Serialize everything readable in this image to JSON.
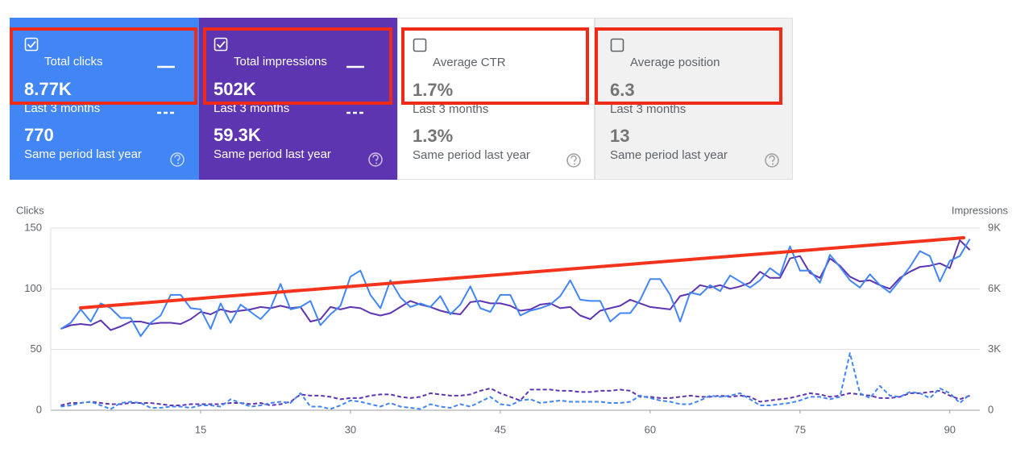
{
  "cards": [
    {
      "label": "Total clicks",
      "value": "8.77K",
      "period": "Last 3 months",
      "previous_value": "770",
      "previous_period": "Same period last year"
    },
    {
      "label": "Total impressions",
      "value": "502K",
      "period": "Last 3 months",
      "previous_value": "59.3K",
      "previous_period": "Same period last year"
    },
    {
      "label": "Average CTR",
      "value": "1.7%",
      "period": "Last 3 months",
      "previous_value": "1.3%",
      "previous_period": "Same period last year"
    },
    {
      "label": "Average position",
      "value": "6.3",
      "period": "Last 3 months",
      "previous_value": "13",
      "previous_period": "Same period last year"
    }
  ],
  "chart_data": {
    "type": "line",
    "y_label": "Clicks",
    "y2_label": "Impressions",
    "x": [
      1,
      2,
      3,
      4,
      5,
      6,
      7,
      8,
      9,
      10,
      11,
      12,
      13,
      14,
      15,
      16,
      17,
      18,
      19,
      20,
      21,
      22,
      23,
      24,
      25,
      26,
      27,
      28,
      29,
      30,
      31,
      32,
      33,
      34,
      35,
      36,
      37,
      38,
      39,
      40,
      41,
      42,
      43,
      44,
      45,
      46,
      47,
      48,
      49,
      50,
      51,
      52,
      53,
      54,
      55,
      56,
      57,
      58,
      59,
      60,
      61,
      62,
      63,
      64,
      65,
      66,
      67,
      68,
      69,
      70,
      71,
      72,
      73,
      74,
      75,
      76,
      77,
      78,
      79,
      80,
      81,
      82,
      83,
      84,
      85,
      86,
      87,
      88,
      89,
      90,
      91,
      92
    ],
    "xlim": [
      0,
      93
    ],
    "xticks": [
      15,
      30,
      45,
      60,
      75,
      90
    ],
    "ylim": [
      0,
      150
    ],
    "yticks": [
      0,
      50,
      100,
      150
    ],
    "y2lim": [
      0,
      9000
    ],
    "y2ticks": [
      0,
      {
        "value": 3000,
        "label": "3K"
      },
      {
        "value": 6000,
        "label": "6K"
      },
      {
        "value": 9000,
        "label": "9K"
      }
    ],
    "grid": true,
    "series": [
      {
        "color": "#4285f4",
        "style": "solid",
        "values": [
          67,
          72,
          83,
          73,
          88,
          84,
          76,
          76,
          61,
          72,
          78,
          95,
          95,
          84,
          83,
          67,
          88,
          72,
          87,
          81,
          75,
          84,
          104,
          83,
          85,
          90,
          70,
          79,
          86,
          110,
          115,
          95,
          84,
          107,
          93,
          85,
          88,
          85,
          94,
          79,
          87,
          102,
          84,
          81,
          95,
          95,
          78,
          82,
          84,
          87,
          94,
          107,
          91,
          90,
          90,
          73,
          80,
          80,
          91,
          108,
          108,
          95,
          73,
          97,
          95,
          103,
          98,
          111,
          106,
          101,
          107,
          117,
          111,
          135,
          115,
          115,
          105,
          128,
          118,
          107,
          101,
          112,
          103,
          97,
          107,
          118,
          131,
          127,
          106,
          123,
          127,
          141
        ]
      },
      {
        "color": "#5e35b1",
        "style": "solid",
        "axis": "y2",
        "values": [
          4020,
          4200,
          4260,
          4200,
          4440,
          3960,
          4140,
          4380,
          4380,
          4260,
          4320,
          4320,
          4260,
          4500,
          4860,
          4740,
          4980,
          4860,
          4920,
          4980,
          5100,
          5040,
          5160,
          5040,
          5100,
          4380,
          4500,
          5100,
          4980,
          5100,
          5040,
          4800,
          4680,
          4800,
          5100,
          5400,
          5220,
          5100,
          4920,
          4800,
          4740,
          5340,
          5400,
          5280,
          5280,
          5160,
          4920,
          4980,
          5220,
          5280,
          5040,
          5100,
          4680,
          4500,
          4920,
          5040,
          5160,
          5460,
          5280,
          5100,
          5040,
          4980,
          5640,
          5760,
          6180,
          6060,
          6180,
          6000,
          6120,
          6300,
          6840,
          6540,
          6540,
          7500,
          7620,
          6780,
          6540,
          7500,
          7140,
          6600,
          6360,
          6420,
          6180,
          6000,
          6540,
          6840,
          7080,
          7140,
          7260,
          7020,
          8400,
          7920
        ]
      },
      {
        "color": "#4285f4",
        "style": "dashed",
        "values": [
          3,
          4,
          6,
          7,
          4,
          1,
          6,
          7,
          6,
          2,
          2,
          3,
          3,
          2,
          4,
          4,
          3,
          9,
          6,
          3,
          4,
          6,
          7,
          6,
          14,
          3,
          3,
          1,
          4,
          8,
          7,
          5,
          3,
          6,
          3,
          2,
          1,
          5,
          3,
          2,
          5,
          3,
          7,
          11,
          5,
          4,
          8,
          9,
          6,
          7,
          8,
          7,
          7,
          7,
          7,
          6,
          6,
          7,
          12,
          10,
          8,
          7,
          5,
          5,
          8,
          12,
          11,
          12,
          14,
          9,
          4,
          4,
          5,
          6,
          8,
          11,
          11,
          9,
          11,
          47,
          14,
          10,
          20,
          12,
          11,
          15,
          14,
          10,
          18,
          14,
          6,
          13
        ]
      },
      {
        "color": "#5e35b1",
        "style": "dashed",
        "axis": "y2",
        "values": [
          240,
          360,
          360,
          420,
          360,
          300,
          300,
          360,
          360,
          360,
          300,
          240,
          240,
          300,
          300,
          300,
          300,
          360,
          360,
          300,
          360,
          240,
          300,
          420,
          780,
          720,
          720,
          660,
          540,
          600,
          600,
          720,
          780,
          780,
          660,
          600,
          660,
          840,
          780,
          720,
          720,
          780,
          960,
          1080,
          840,
          660,
          480,
          1020,
          1020,
          1020,
          960,
          960,
          900,
          900,
          960,
          960,
          1020,
          960,
          660,
          660,
          600,
          600,
          660,
          720,
          660,
          660,
          720,
          660,
          720,
          660,
          420,
          480,
          540,
          600,
          720,
          840,
          780,
          660,
          720,
          840,
          780,
          720,
          600,
          600,
          660,
          840,
          840,
          900,
          960,
          720,
          540,
          720
        ]
      }
    ]
  }
}
